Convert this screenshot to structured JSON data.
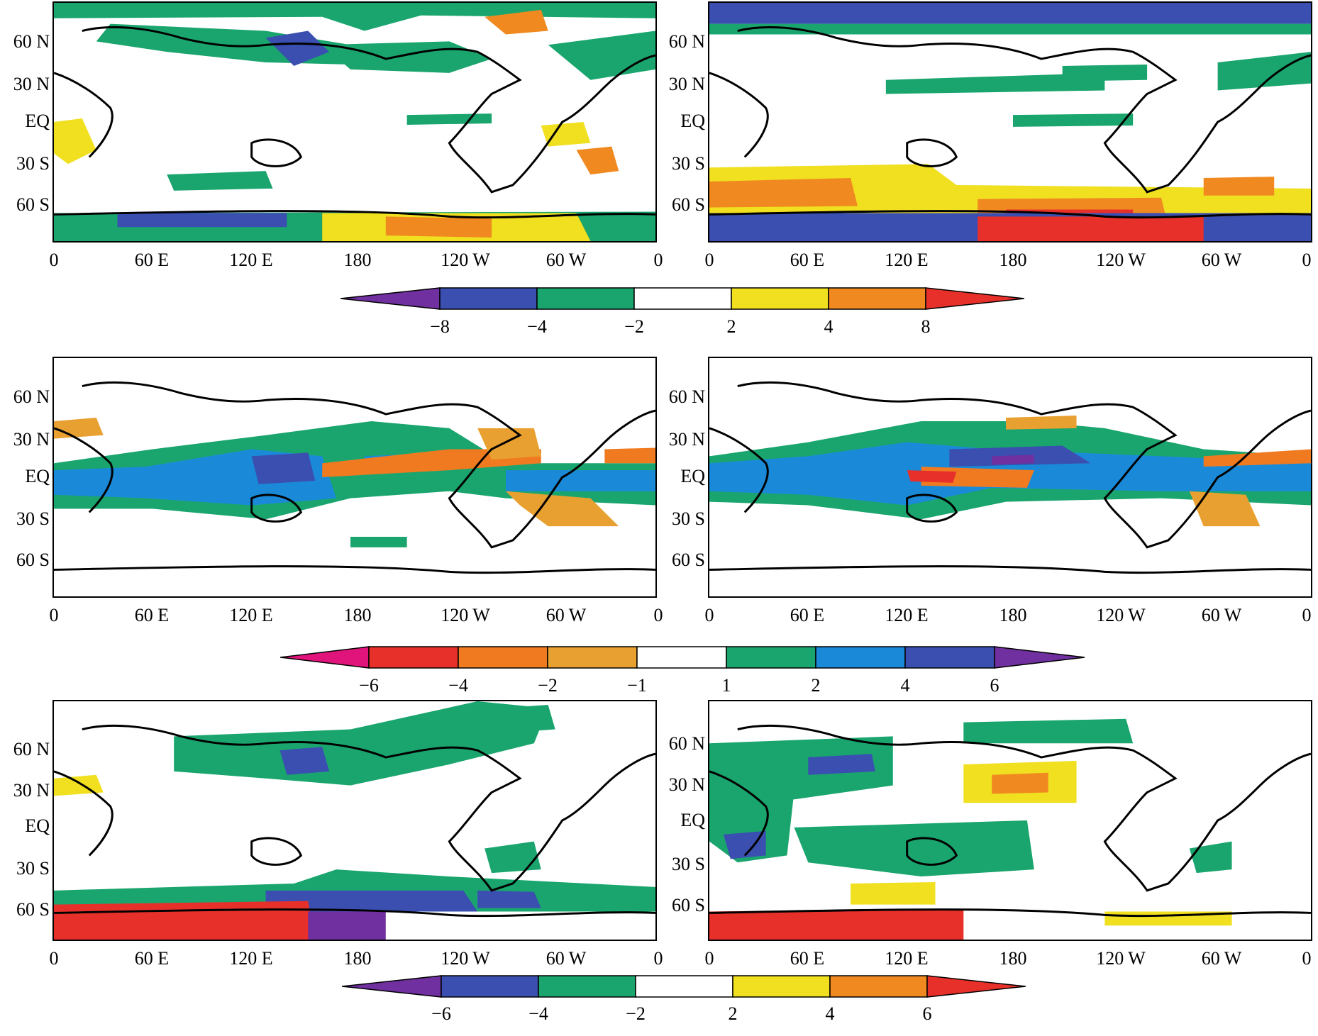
{
  "axis": {
    "x_ticks": [
      "0",
      "60 E",
      "120 E",
      "180",
      "120 W",
      "60 W",
      "0"
    ],
    "y_ticks": [
      "60 N",
      "30 N",
      "EQ",
      "30 S",
      "60 S"
    ]
  },
  "panels": [
    {
      "id": "row1-left",
      "row": 1,
      "col": "left"
    },
    {
      "id": "row1-right",
      "row": 1,
      "col": "right"
    },
    {
      "id": "row2-left",
      "row": 2,
      "col": "left"
    },
    {
      "id": "row2-right",
      "row": 2,
      "col": "right"
    },
    {
      "id": "row3-left",
      "row": 3,
      "col": "left"
    },
    {
      "id": "row3-right",
      "row": 3,
      "col": "right"
    }
  ],
  "colorbars": [
    {
      "id": "colorbar-1",
      "labels": [
        "−8",
        "−4",
        "−2",
        "2",
        "4",
        "8"
      ],
      "colors": [
        "#7030a0",
        "#3a4fb0",
        "#1aa56e",
        "#ffffff",
        "#f0e020",
        "#f08a20",
        "#e8302a"
      ]
    },
    {
      "id": "colorbar-2",
      "labels": [
        "−6",
        "−4",
        "−2",
        "−1",
        "1",
        "2",
        "4",
        "6"
      ],
      "colors": [
        "#e0147a",
        "#e8302a",
        "#f07a20",
        "#e8a030",
        "#ffffff",
        "#1aa56e",
        "#1a8ad8",
        "#3a4fb0",
        "#7030a0"
      ]
    },
    {
      "id": "colorbar-3",
      "labels": [
        "−6",
        "−4",
        "−2",
        "2",
        "4",
        "6"
      ],
      "colors": [
        "#7030a0",
        "#3a4fb0",
        "#1aa56e",
        "#ffffff",
        "#f0e020",
        "#f08a20",
        "#e8302a"
      ]
    }
  ]
}
